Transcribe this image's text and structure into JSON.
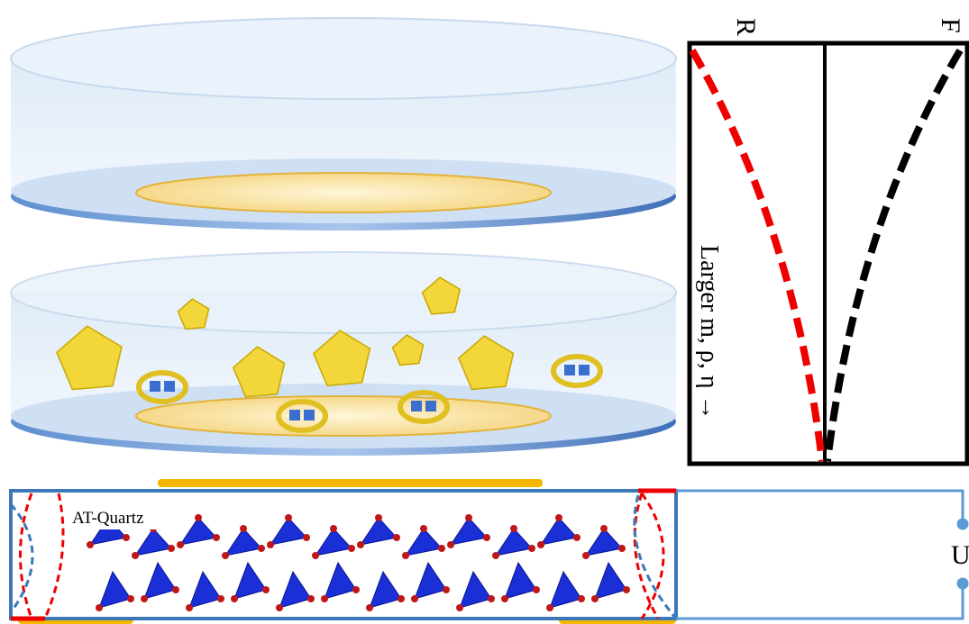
{
  "labels": {
    "r": "R",
    "f": "F",
    "axis": "Larger m, ρ, η →",
    "crystal": "AT-Quartz",
    "voltage": "U"
  }
}
